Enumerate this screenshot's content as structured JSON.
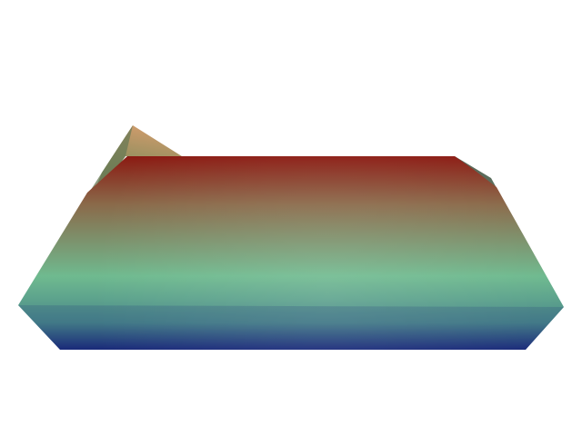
{
  "scene": {
    "background": "#ffffff",
    "object": "rendered-3d-surface-slab",
    "colormap": {
      "top": "#8b1a12",
      "upper_mid": "#8a6a4a",
      "mid": "#6fba8f",
      "lower_mid": "#4a8a8a",
      "bottom": "#1a2a7a"
    },
    "back_ridge_colors": {
      "light": "#c99a6a",
      "mid": "#7a8a5a",
      "dark": "#4f6a4a"
    }
  }
}
